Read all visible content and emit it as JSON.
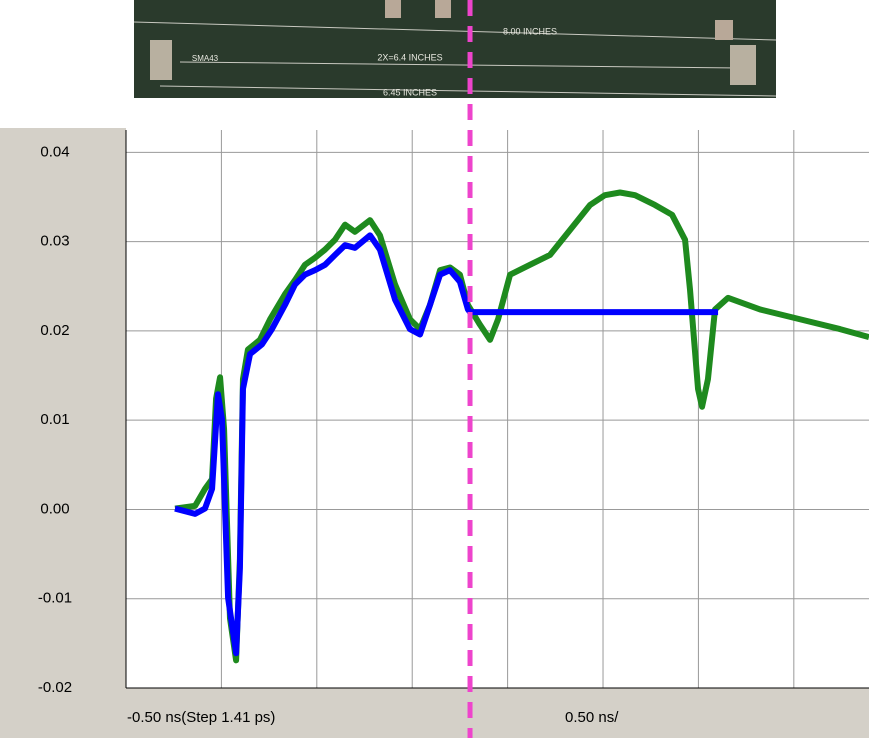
{
  "photo": {
    "labels": [
      "8.00 INCHES",
      "2X=6.4 INCHES",
      "6.45 INCHES",
      "SMA43"
    ]
  },
  "chart_data": {
    "type": "line",
    "x_labels": [
      "-0.50 ns(Step 1.41 ps)",
      "0.50 ns/"
    ],
    "xlim": [
      -0.5,
      3.394
    ],
    "ylim": [
      -0.02,
      0.0425
    ],
    "xgrid": [
      -0.5,
      0,
      0.5,
      1,
      1.5,
      2,
      2.5,
      3
    ],
    "yticks": [
      0.04,
      0.03,
      0.02,
      0.01,
      {
        "value": 0,
        "label": "0.00"
      },
      -0.01,
      -0.02
    ],
    "grid": true,
    "marker_x": 1.303,
    "marker_color": "#ee44cc",
    "series": [
      {
        "color": "#1e8a1e",
        "x": [
          -0.243,
          -0.138,
          -0.086,
          -0.049,
          -0.028,
          -0.007,
          0.014,
          0.045,
          0.077,
          0.097,
          0.113,
          0.139,
          0.202,
          0.255,
          0.333,
          0.386,
          0.438,
          0.491,
          0.543,
          0.595,
          0.648,
          0.7,
          0.779,
          0.831,
          0.91,
          0.988,
          1.041,
          1.093,
          1.146,
          1.198,
          1.25,
          1.292,
          1.355,
          1.408,
          1.45,
          1.513,
          1.617,
          1.722,
          1.827,
          1.932,
          2.01,
          2.089,
          2.168,
          2.272,
          2.362,
          2.43,
          2.456,
          2.498,
          2.519,
          2.55,
          2.587,
          2.655,
          2.823,
          3.032,
          3.242,
          3.394
        ],
        "values": [
          0.0001,
          0.0004,
          0.0023,
          0.0034,
          0.0124,
          0.0148,
          0.009,
          -0.0122,
          -0.0169,
          -0.0055,
          0.0146,
          0.0179,
          0.019,
          0.0213,
          0.0241,
          0.0257,
          0.0274,
          0.0282,
          0.0291,
          0.0302,
          0.0319,
          0.0311,
          0.0324,
          0.0307,
          0.0252,
          0.0213,
          0.0202,
          0.0229,
          0.0268,
          0.0271,
          0.0263,
          0.0229,
          0.0207,
          0.019,
          0.0213,
          0.0263,
          0.0274,
          0.0285,
          0.0313,
          0.0341,
          0.0352,
          0.0355,
          0.0352,
          0.0341,
          0.033,
          0.0302,
          0.0246,
          0.0135,
          0.0115,
          0.0146,
          0.0224,
          0.0237,
          0.0224,
          0.0213,
          0.0202,
          0.0193
        ]
      },
      {
        "color": "#0000ff",
        "x": [
          -0.243,
          -0.138,
          -0.086,
          -0.049,
          -0.018,
          0.003,
          0.035,
          0.077,
          0.097,
          0.113,
          0.15,
          0.213,
          0.265,
          0.333,
          0.386,
          0.438,
          0.491,
          0.543,
          0.595,
          0.648,
          0.7,
          0.779,
          0.831,
          0.91,
          0.988,
          1.041,
          1.093,
          1.146,
          1.198,
          1.25,
          1.292,
          1.303,
          2.603
        ],
        "values": [
          0.0001,
          -0.0005,
          0.0001,
          0.0023,
          0.0129,
          0.0101,
          -0.0099,
          -0.0161,
          -0.0066,
          0.0135,
          0.0174,
          0.0185,
          0.0202,
          0.0229,
          0.0252,
          0.0263,
          0.0268,
          0.0274,
          0.0285,
          0.0296,
          0.0293,
          0.0307,
          0.0291,
          0.0235,
          0.0202,
          0.0196,
          0.0229,
          0.0263,
          0.0268,
          0.0255,
          0.0224,
          0.0221,
          0.0221
        ]
      }
    ]
  }
}
